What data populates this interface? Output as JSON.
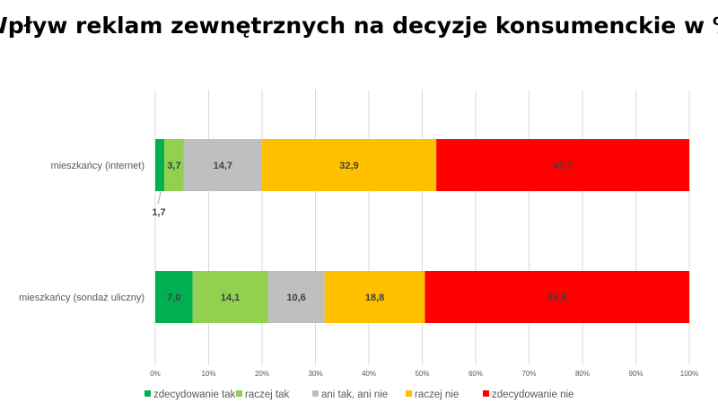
{
  "chart_data": {
    "type": "bar",
    "orientation": "horizontal",
    "stacked": "percent",
    "title": "Wpływ reklam zewnętrznych na decyzje konsumenckie w %",
    "categories": [
      "mieszkańcy (internet)",
      "mieszkańcy (sondaż uliczny)"
    ],
    "series": [
      {
        "name": "zdecydowanie tak",
        "color": "#00b050",
        "values": [
          1.7,
          7.0
        ],
        "labels": [
          "1,7",
          "7,0"
        ]
      },
      {
        "name": "raczej tak",
        "color": "#92d050",
        "values": [
          3.7,
          14.1
        ],
        "labels": [
          "3,7",
          "14,1"
        ]
      },
      {
        "name": "ani tak, ani nie",
        "color": "#bfbfbf",
        "values": [
          14.7,
          10.6
        ],
        "labels": [
          "14,7",
          "10,6"
        ]
      },
      {
        "name": "raczej nie",
        "color": "#ffc000",
        "values": [
          32.9,
          18.8
        ],
        "labels": [
          "32,9",
          "18,8"
        ]
      },
      {
        "name": "zdecydowanie nie",
        "color": "#ff0000",
        "values": [
          47.7,
          49.5
        ],
        "labels": [
          "47,7",
          "49,5"
        ]
      }
    ],
    "xlim": [
      0,
      100
    ],
    "xticks": [
      "0%",
      "10%",
      "20%",
      "30%",
      "40%",
      "50%",
      "60%",
      "70%",
      "80%",
      "90%",
      "100%"
    ],
    "grid": true,
    "legend": "bottom"
  }
}
